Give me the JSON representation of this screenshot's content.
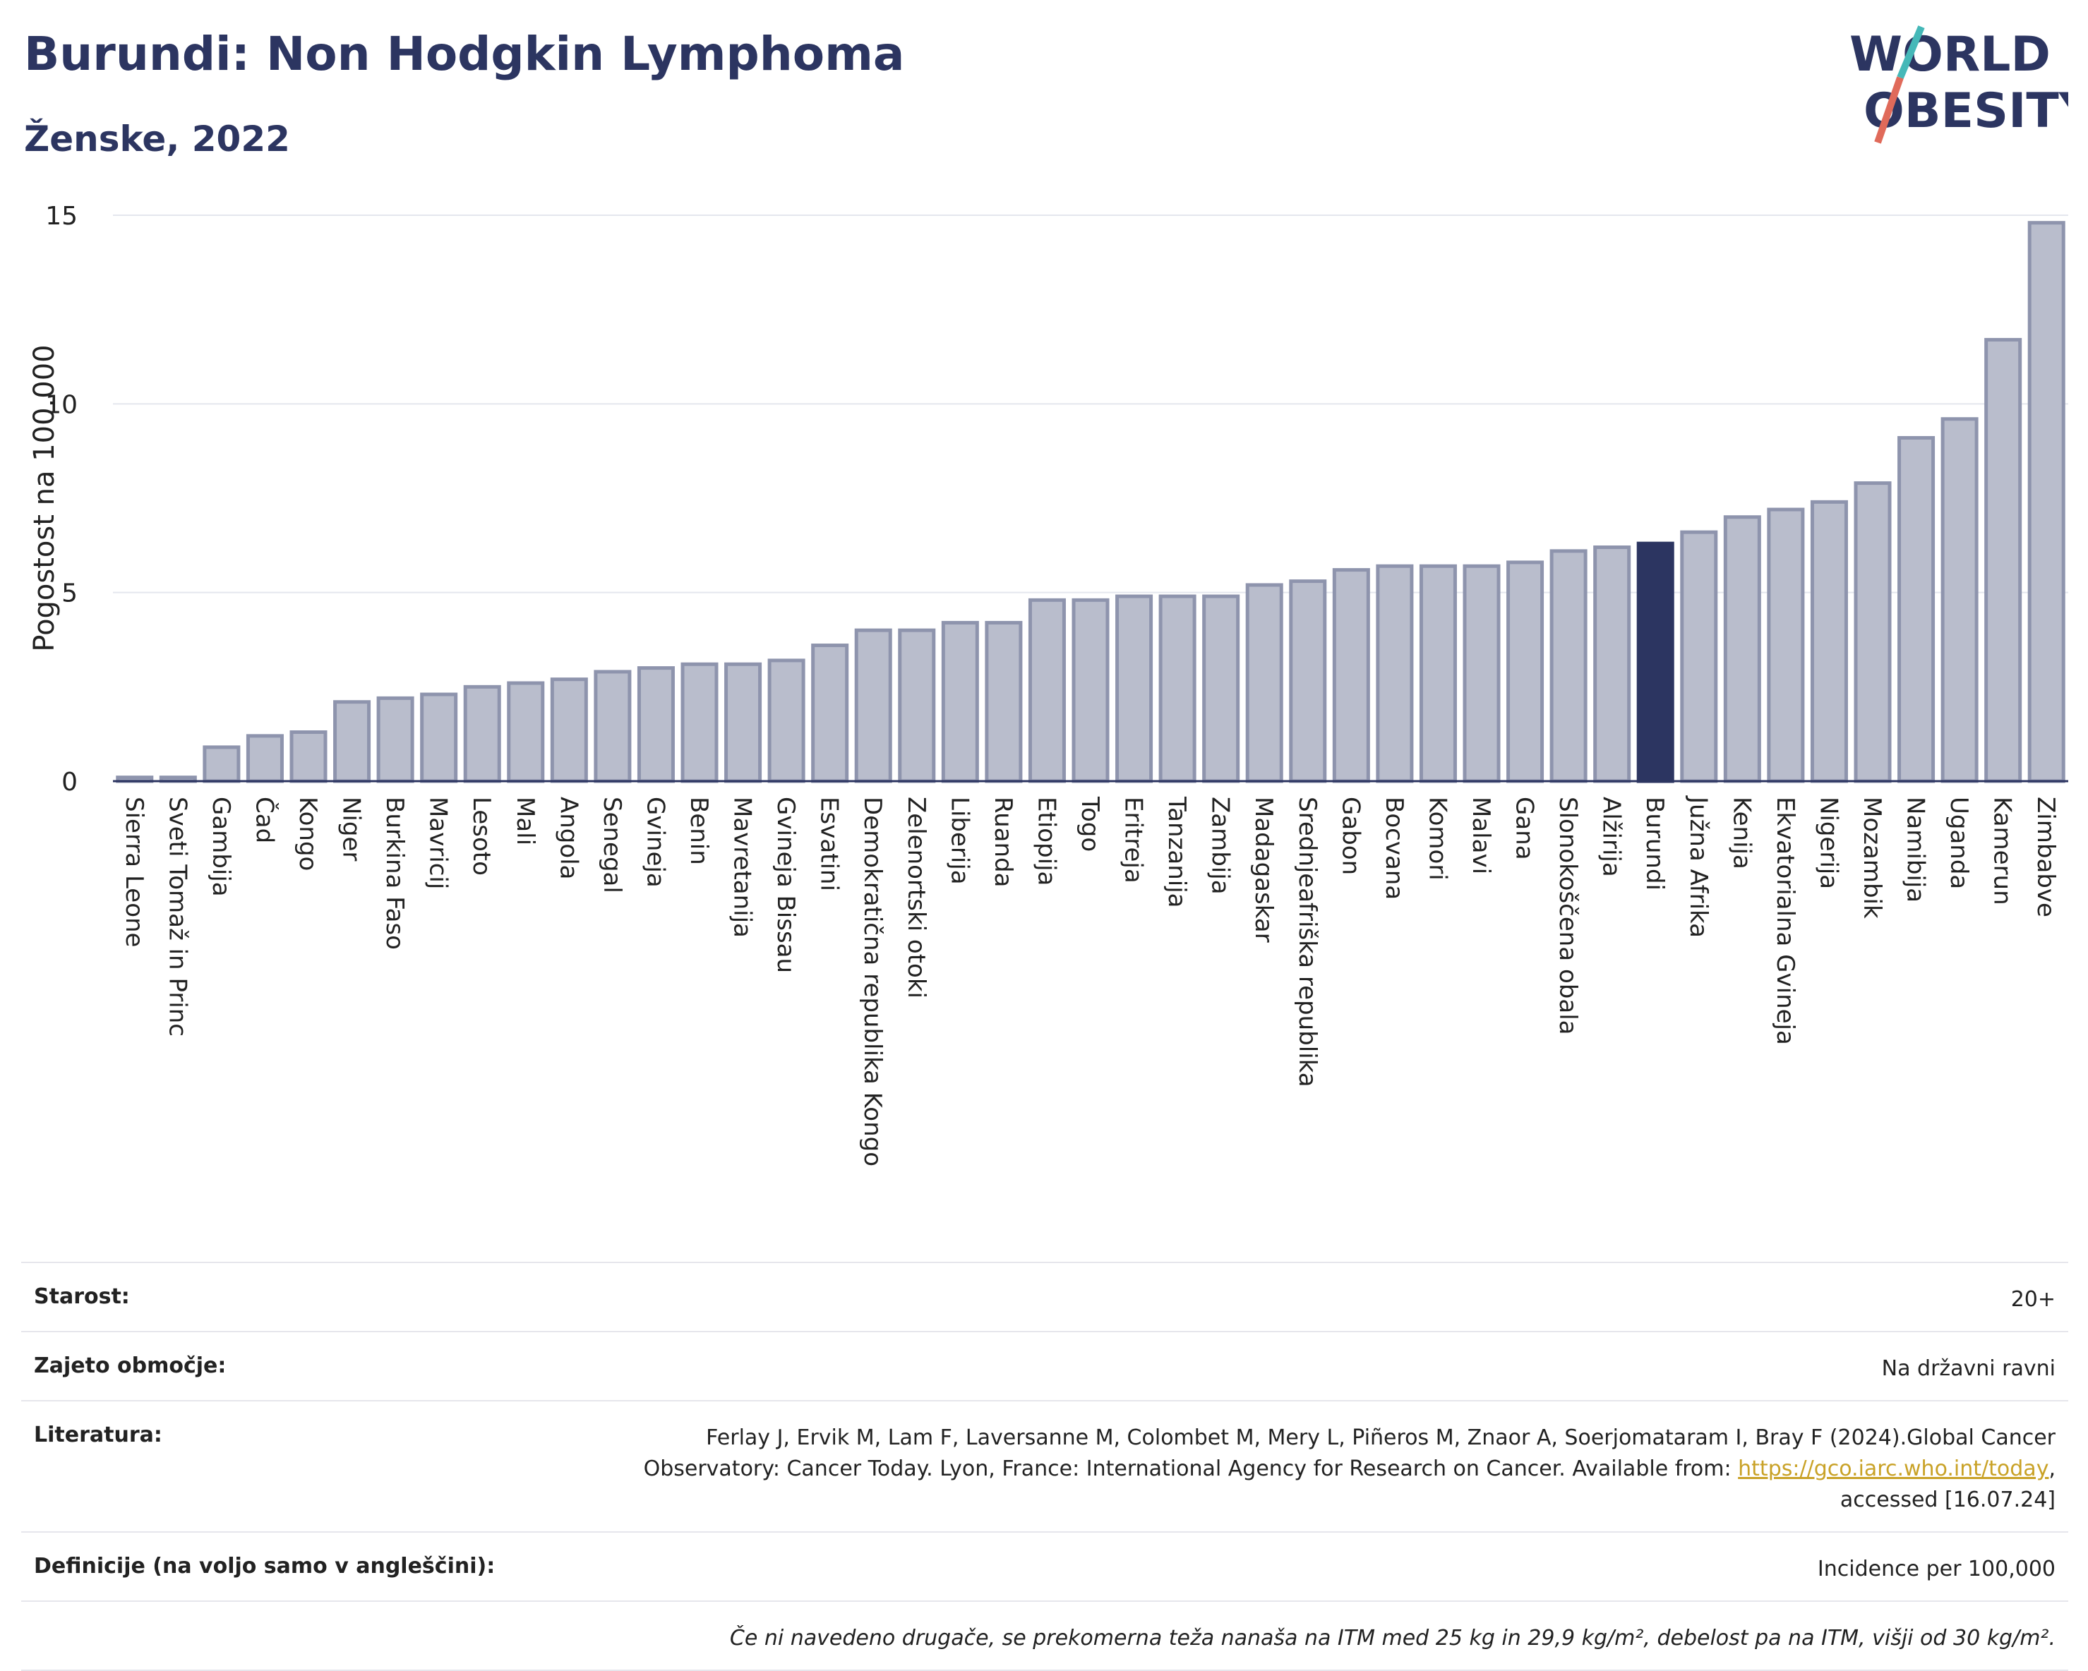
{
  "header": {
    "title": "Burundi: Non Hodgkin Lymphoma",
    "subtitle": "Ženske, 2022"
  },
  "logo": {
    "line1": "WORLD",
    "line2": "OBESITY",
    "colors": [
      "#2c3561",
      "#45b8b8",
      "#e06a5a"
    ]
  },
  "chart_data": {
    "type": "bar",
    "ylabel": "Pogostost na 100.000",
    "ylim": [
      0,
      15
    ],
    "yticks": [
      0,
      5,
      10,
      15
    ],
    "highlight": "Burundi",
    "colors": {
      "default": "#b9bdcc",
      "default_border": "#8e94ad",
      "highlight": "#2c3561"
    },
    "categories": [
      "Sierra Leone",
      "Sveti Tomaž in Princ",
      "Gambija",
      "Čad",
      "Kongo",
      "Niger",
      "Burkina Faso",
      "Mavricij",
      "Lesoto",
      "Mali",
      "Angola",
      "Senegal",
      "Gvineja",
      "Benin",
      "Mavretanija",
      "Gvineja Bissau",
      "Esvatini",
      "Demokratična republika Kongo",
      "Zelenortski otoki",
      "Liberija",
      "Ruanda",
      "Etiopija",
      "Togo",
      "Eritreja",
      "Tanzanija",
      "Zambija",
      "Madagaskar",
      "Srednjeafriška republika",
      "Gabon",
      "Bocvana",
      "Komori",
      "Malavi",
      "Gana",
      "Slonokoščena obala",
      "Alžirija",
      "Burundi",
      "Južna Afrika",
      "Kenija",
      "Ekvatorialna Gvineja",
      "Nigerija",
      "Mozambik",
      "Namibija",
      "Uganda",
      "Kamerun",
      "Zimbabve"
    ],
    "values": [
      0.1,
      0.1,
      0.9,
      1.2,
      1.3,
      2.1,
      2.2,
      2.3,
      2.5,
      2.6,
      2.7,
      2.9,
      3.0,
      3.1,
      3.1,
      3.2,
      3.6,
      4.0,
      4.0,
      4.2,
      4.2,
      4.8,
      4.8,
      4.9,
      4.9,
      4.9,
      5.2,
      5.3,
      5.6,
      5.7,
      5.7,
      5.7,
      5.8,
      6.1,
      6.2,
      6.3,
      6.6,
      7.0,
      7.2,
      7.4,
      7.9,
      9.1,
      9.6,
      11.7,
      14.8
    ]
  },
  "info": {
    "age": {
      "label": "Starost:",
      "value": "20+"
    },
    "coverage": {
      "label": "Zajeto območje:",
      "value": "Na državni ravni"
    },
    "literature": {
      "label": "Literatura:",
      "text1": "Ferlay J, Ervik M, Lam F, Laversanne M, Colombet M, Mery L, Piñeros M, Znaor A, Soerjomataram I, Bray F (2024).Global Cancer Observatory: Cancer Today. Lyon, France: International Agency for Research on Cancer. Available from: ",
      "link": "https://gco.iarc.who.int/today",
      "text2": ", accessed [16.07.24]"
    },
    "definitions": {
      "label": "Definicije (na voljo samo v angleščini):",
      "value": "Incidence per 100,000"
    },
    "note": "Če ni navedeno drugače, se prekomerna teža nanaša na ITM med 25 kg in 29,9 kg/m², debelost pa na ITM, višji od 30 kg/m²."
  }
}
